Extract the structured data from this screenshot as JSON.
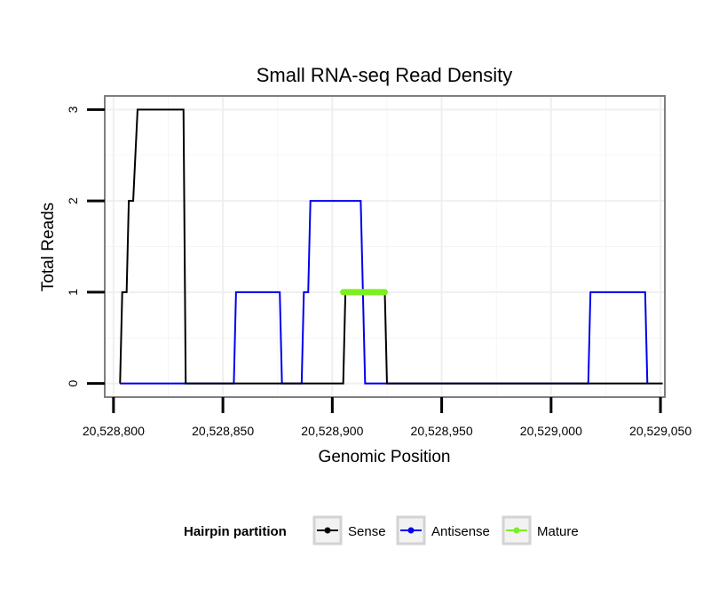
{
  "chart_data": {
    "type": "line",
    "title": "Small RNA-seq Read Density",
    "xlabel": "Genomic Position",
    "ylabel": "Total Reads",
    "xlim": [
      20528796,
      20529052
    ],
    "ylim": [
      -0.15,
      3.15
    ],
    "x_ticks": [
      {
        "value": 20528800,
        "label": "20,528,800"
      },
      {
        "value": 20528850,
        "label": "20,528,850"
      },
      {
        "value": 20528900,
        "label": "20,528,900"
      },
      {
        "value": 20528950,
        "label": "20,528,950"
      },
      {
        "value": 20529000,
        "label": "20,529,000"
      },
      {
        "value": 20529050,
        "label": "20,529,050"
      }
    ],
    "y_ticks": [
      {
        "value": 0,
        "label": "0"
      },
      {
        "value": 1,
        "label": "1"
      },
      {
        "value": 2,
        "label": "2"
      },
      {
        "value": 3,
        "label": "3"
      }
    ],
    "grid": true,
    "legend": {
      "title": "Hairpin partition",
      "position": "bottom",
      "entries": [
        "Sense",
        "Antisense",
        "Mature"
      ]
    },
    "series": [
      {
        "name": "Sense",
        "color": "#000000",
        "points": [
          [
            20528803,
            0
          ],
          [
            20528804,
            1
          ],
          [
            20528806,
            1
          ],
          [
            20528807,
            2
          ],
          [
            20528809,
            2
          ],
          [
            20528811,
            3
          ],
          [
            20528832,
            3
          ],
          [
            20528833,
            0
          ],
          [
            20528905,
            0
          ],
          [
            20528906,
            1
          ],
          [
            20528924,
            1
          ],
          [
            20528925,
            0
          ],
          [
            20529051,
            0
          ]
        ]
      },
      {
        "name": "Antisense",
        "color": "#0000ee",
        "points": [
          [
            20528803,
            0
          ],
          [
            20528855,
            0
          ],
          [
            20528856,
            1
          ],
          [
            20528876,
            1
          ],
          [
            20528877,
            0
          ],
          [
            20528886,
            0
          ],
          [
            20528887,
            1
          ],
          [
            20528889,
            1
          ],
          [
            20528890,
            2
          ],
          [
            20528913,
            2
          ],
          [
            20528914,
            1
          ],
          [
            20528915,
            0
          ],
          [
            20529017,
            0
          ],
          [
            20529018,
            1
          ],
          [
            20529043,
            1
          ],
          [
            20529044,
            0
          ]
        ]
      },
      {
        "name": "Mature",
        "color": "#7cee22",
        "points": [
          [
            20528905,
            1
          ],
          [
            20528924,
            1
          ]
        ]
      }
    ]
  }
}
